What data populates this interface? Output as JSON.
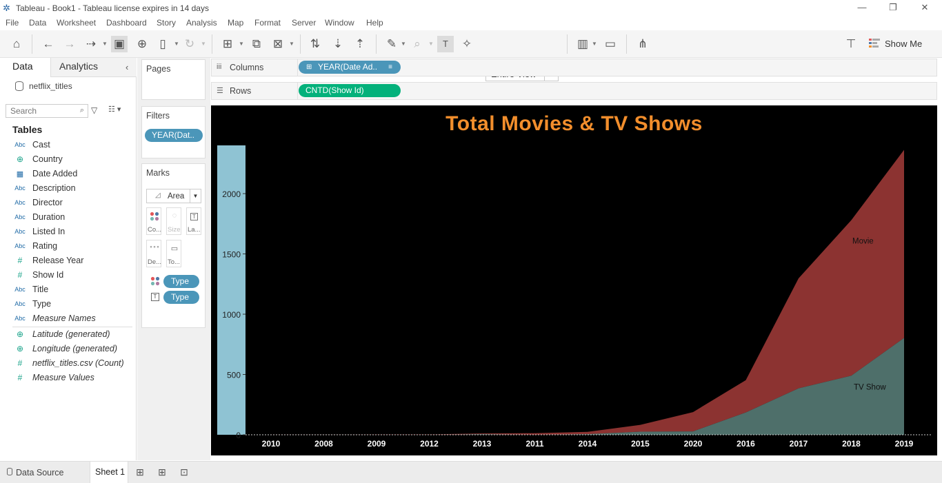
{
  "window": {
    "title": "Tableau - Book1 - Tableau license expires in 14 days",
    "minimize": "—",
    "restore": "❐",
    "close": "✕"
  },
  "menu": [
    "File",
    "Data",
    "Worksheet",
    "Dashboard",
    "Story",
    "Analysis",
    "Map",
    "Format",
    "Server",
    "Window",
    "Help"
  ],
  "toolbar": {
    "fit_value": "Entire View",
    "show_me_label": "Show Me",
    "icons": [
      "home-icon",
      "undo-icon",
      "redo-icon",
      "replay-icon",
      "save-icon",
      "new-datasource-icon",
      "pause-updates-icon",
      "refresh-icon",
      "new-worksheet-icon",
      "duplicate-icon",
      "clear-icon",
      "swap-icon",
      "sort-asc-icon",
      "sort-desc-icon",
      "highlight-icon",
      "group-icon",
      "label-icon",
      "pin-icon",
      "show-cards-icon",
      "presentation-icon",
      "share-icon",
      "presenter-icon"
    ]
  },
  "data_pane": {
    "tab_data": "Data",
    "tab_analytics": "Analytics",
    "collapse": "‹",
    "datasource": "netflix_titles",
    "search_placeholder": "Search",
    "tables_header": "Tables",
    "fields": [
      {
        "type": "Abc",
        "name": "Cast"
      },
      {
        "type": "⊕",
        "name": "Country"
      },
      {
        "type": "▦",
        "name": "Date Added"
      },
      {
        "type": "Abc",
        "name": "Description"
      },
      {
        "type": "Abc",
        "name": "Director"
      },
      {
        "type": "Abc",
        "name": "Duration"
      },
      {
        "type": "Abc",
        "name": "Listed In"
      },
      {
        "type": "Abc",
        "name": "Rating"
      },
      {
        "type": "#",
        "name": "Release Year"
      },
      {
        "type": "#",
        "name": "Show Id"
      },
      {
        "type": "Abc",
        "name": "Title"
      },
      {
        "type": "Abc",
        "name": "Type"
      },
      {
        "type": "Abc",
        "name": "Measure Names"
      }
    ],
    "measures": [
      {
        "type": "⊕",
        "name": "Latitude (generated)"
      },
      {
        "type": "⊕",
        "name": "Longitude (generated)"
      },
      {
        "type": "#",
        "name": "netflix_titles.csv (Count)"
      },
      {
        "type": "#",
        "name": "Measure Values"
      }
    ]
  },
  "cards": {
    "pages_title": "Pages",
    "filters_title": "Filters",
    "filter_pill": "YEAR(Dat..",
    "marks_title": "Marks",
    "mark_type": "Area",
    "mark_buttons": [
      "Co...",
      "Size",
      "La...",
      "De...",
      "To..."
    ],
    "mark_pills": [
      "Type",
      "Type"
    ]
  },
  "shelves": {
    "columns_label": "Columns",
    "columns_pill": "YEAR(Date Ad..",
    "rows_label": "Rows",
    "rows_pill": "CNTD(Show Id)"
  },
  "colors": {
    "movie": "#8c3331",
    "tv_show": "#4e6f6a",
    "title": "#f28e2c",
    "axis_band": "#8fc3d3",
    "pill_blue": "#4b96b9",
    "pill_green": "#04b17b"
  },
  "chart_data": {
    "type": "area",
    "title": "Total Movies & TV Shows",
    "x": [
      "2010",
      "2008",
      "2009",
      "2012",
      "2013",
      "2011",
      "2014",
      "2015",
      "2020",
      "2016",
      "2017",
      "2018",
      "2019"
    ],
    "series": [
      {
        "name": "TV Show",
        "values": [
          0,
          1,
          0,
          0,
          5,
          0,
          5,
          26,
          28,
          185,
          385,
          490,
          803
        ]
      },
      {
        "name": "Movie",
        "values": [
          1,
          1,
          2,
          3,
          6,
          13,
          19,
          56,
          160,
          268,
          912,
          1290,
          1560
        ]
      }
    ],
    "stacked": true,
    "ylim": [
      0,
      2400
    ],
    "yticks": [
      0,
      500,
      1000,
      1500,
      2000
    ],
    "xlabel": "",
    "ylabel": "",
    "legend": "none"
  },
  "bottom": {
    "datasource_tab": "Data Source",
    "sheet_tab": "Sheet 1"
  }
}
